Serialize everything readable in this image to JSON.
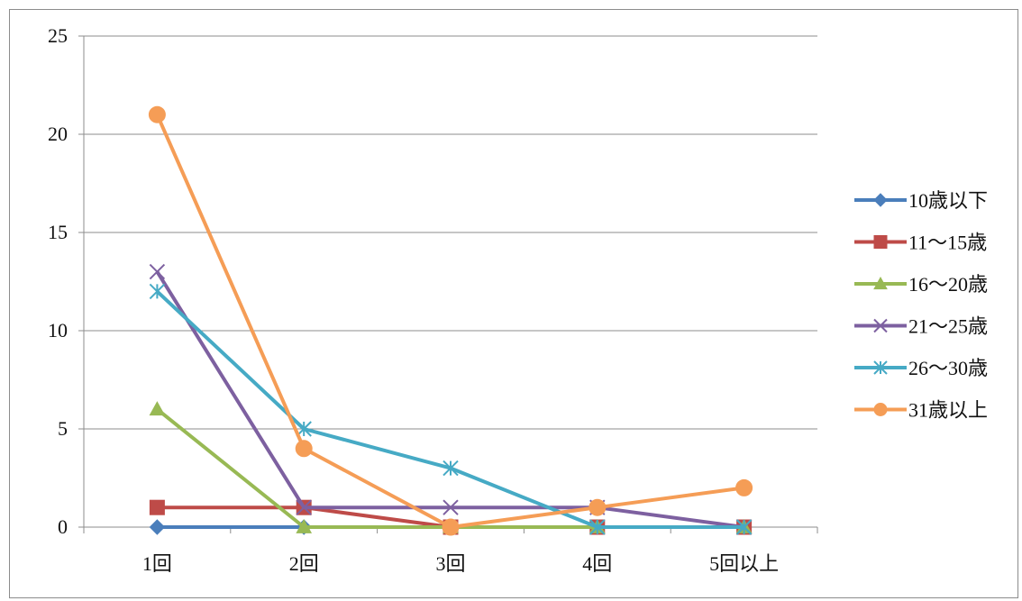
{
  "chart_data": {
    "type": "line",
    "categories": [
      "1回",
      "2回",
      "3回",
      "4回",
      "5回以上"
    ],
    "ylim": [
      0,
      25
    ],
    "yticks": [
      0,
      5,
      10,
      15,
      20,
      25
    ],
    "grid": "horizontal",
    "legend_position": "right",
    "series": [
      {
        "name": "10歳以下",
        "values": [
          0,
          0,
          0,
          0,
          0
        ],
        "color": "#4a7ebb",
        "marker": "diamond"
      },
      {
        "name": "11～15歳",
        "values": [
          1,
          1,
          0,
          0,
          0
        ],
        "color": "#be4b48",
        "marker": "square"
      },
      {
        "name": "16～20歳",
        "values": [
          6,
          0,
          0,
          0,
          0
        ],
        "color": "#98b954",
        "marker": "triangle"
      },
      {
        "name": "21～25歳",
        "values": [
          13,
          1,
          1,
          1,
          0
        ],
        "color": "#7d60a0",
        "marker": "x"
      },
      {
        "name": "26～30歳",
        "values": [
          12,
          5,
          3,
          0,
          0
        ],
        "color": "#46aac5",
        "marker": "star"
      },
      {
        "name": "31歳以上",
        "values": [
          21,
          4,
          0,
          1,
          2
        ],
        "color": "#f59d56",
        "marker": "circle"
      }
    ]
  }
}
